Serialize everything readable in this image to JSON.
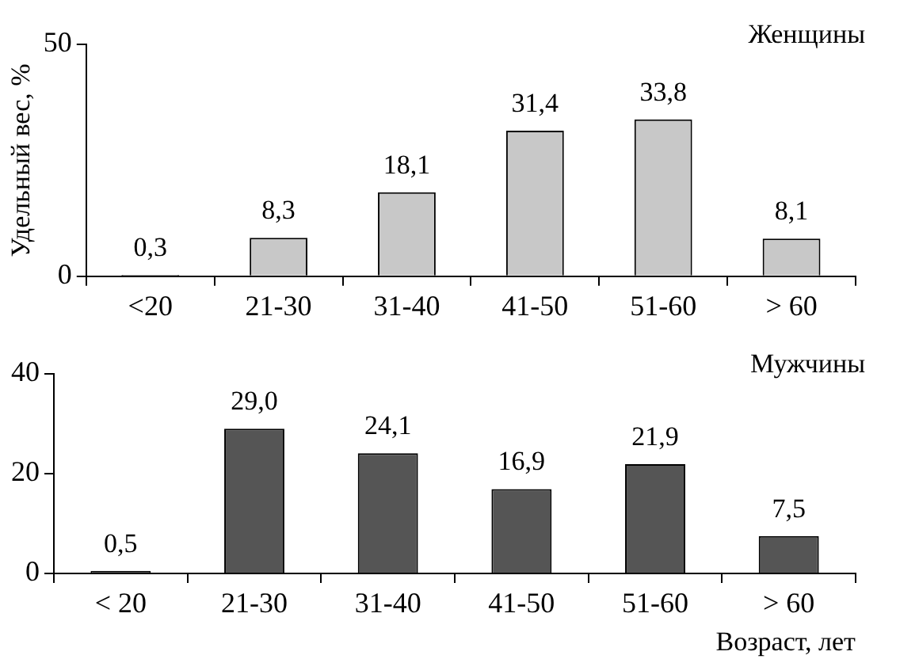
{
  "chart_data": [
    {
      "type": "bar",
      "title": "Женщины",
      "ylabel": "Удельный вес, %",
      "categories": [
        "<20",
        "21-30",
        "31-40",
        "41-50",
        "51-60",
        "> 60"
      ],
      "values": [
        0.3,
        8.3,
        18.1,
        31.4,
        33.8,
        8.1
      ],
      "value_labels": [
        "0,3",
        "8,3",
        "18,1",
        "31,4",
        "33,8",
        "8,1"
      ],
      "color": "#c8c8c8",
      "ylim": [
        0,
        50
      ],
      "yticks": [
        0,
        50
      ],
      "grid": false,
      "legend": false
    },
    {
      "type": "bar",
      "title": "Мужчины",
      "xlabel": "Возраст, лет",
      "categories": [
        "< 20",
        "21-30",
        "31-40",
        "41-50",
        "51-60",
        "> 60"
      ],
      "values": [
        0.5,
        29.0,
        24.1,
        16.9,
        21.9,
        7.5
      ],
      "value_labels": [
        "0,5",
        "29,0",
        "24,1",
        "16,9",
        "21,9",
        "7,5"
      ],
      "color": "#555555",
      "ylim": [
        0,
        40
      ],
      "yticks": [
        0,
        20,
        40
      ],
      "grid": false,
      "legend": false
    }
  ]
}
